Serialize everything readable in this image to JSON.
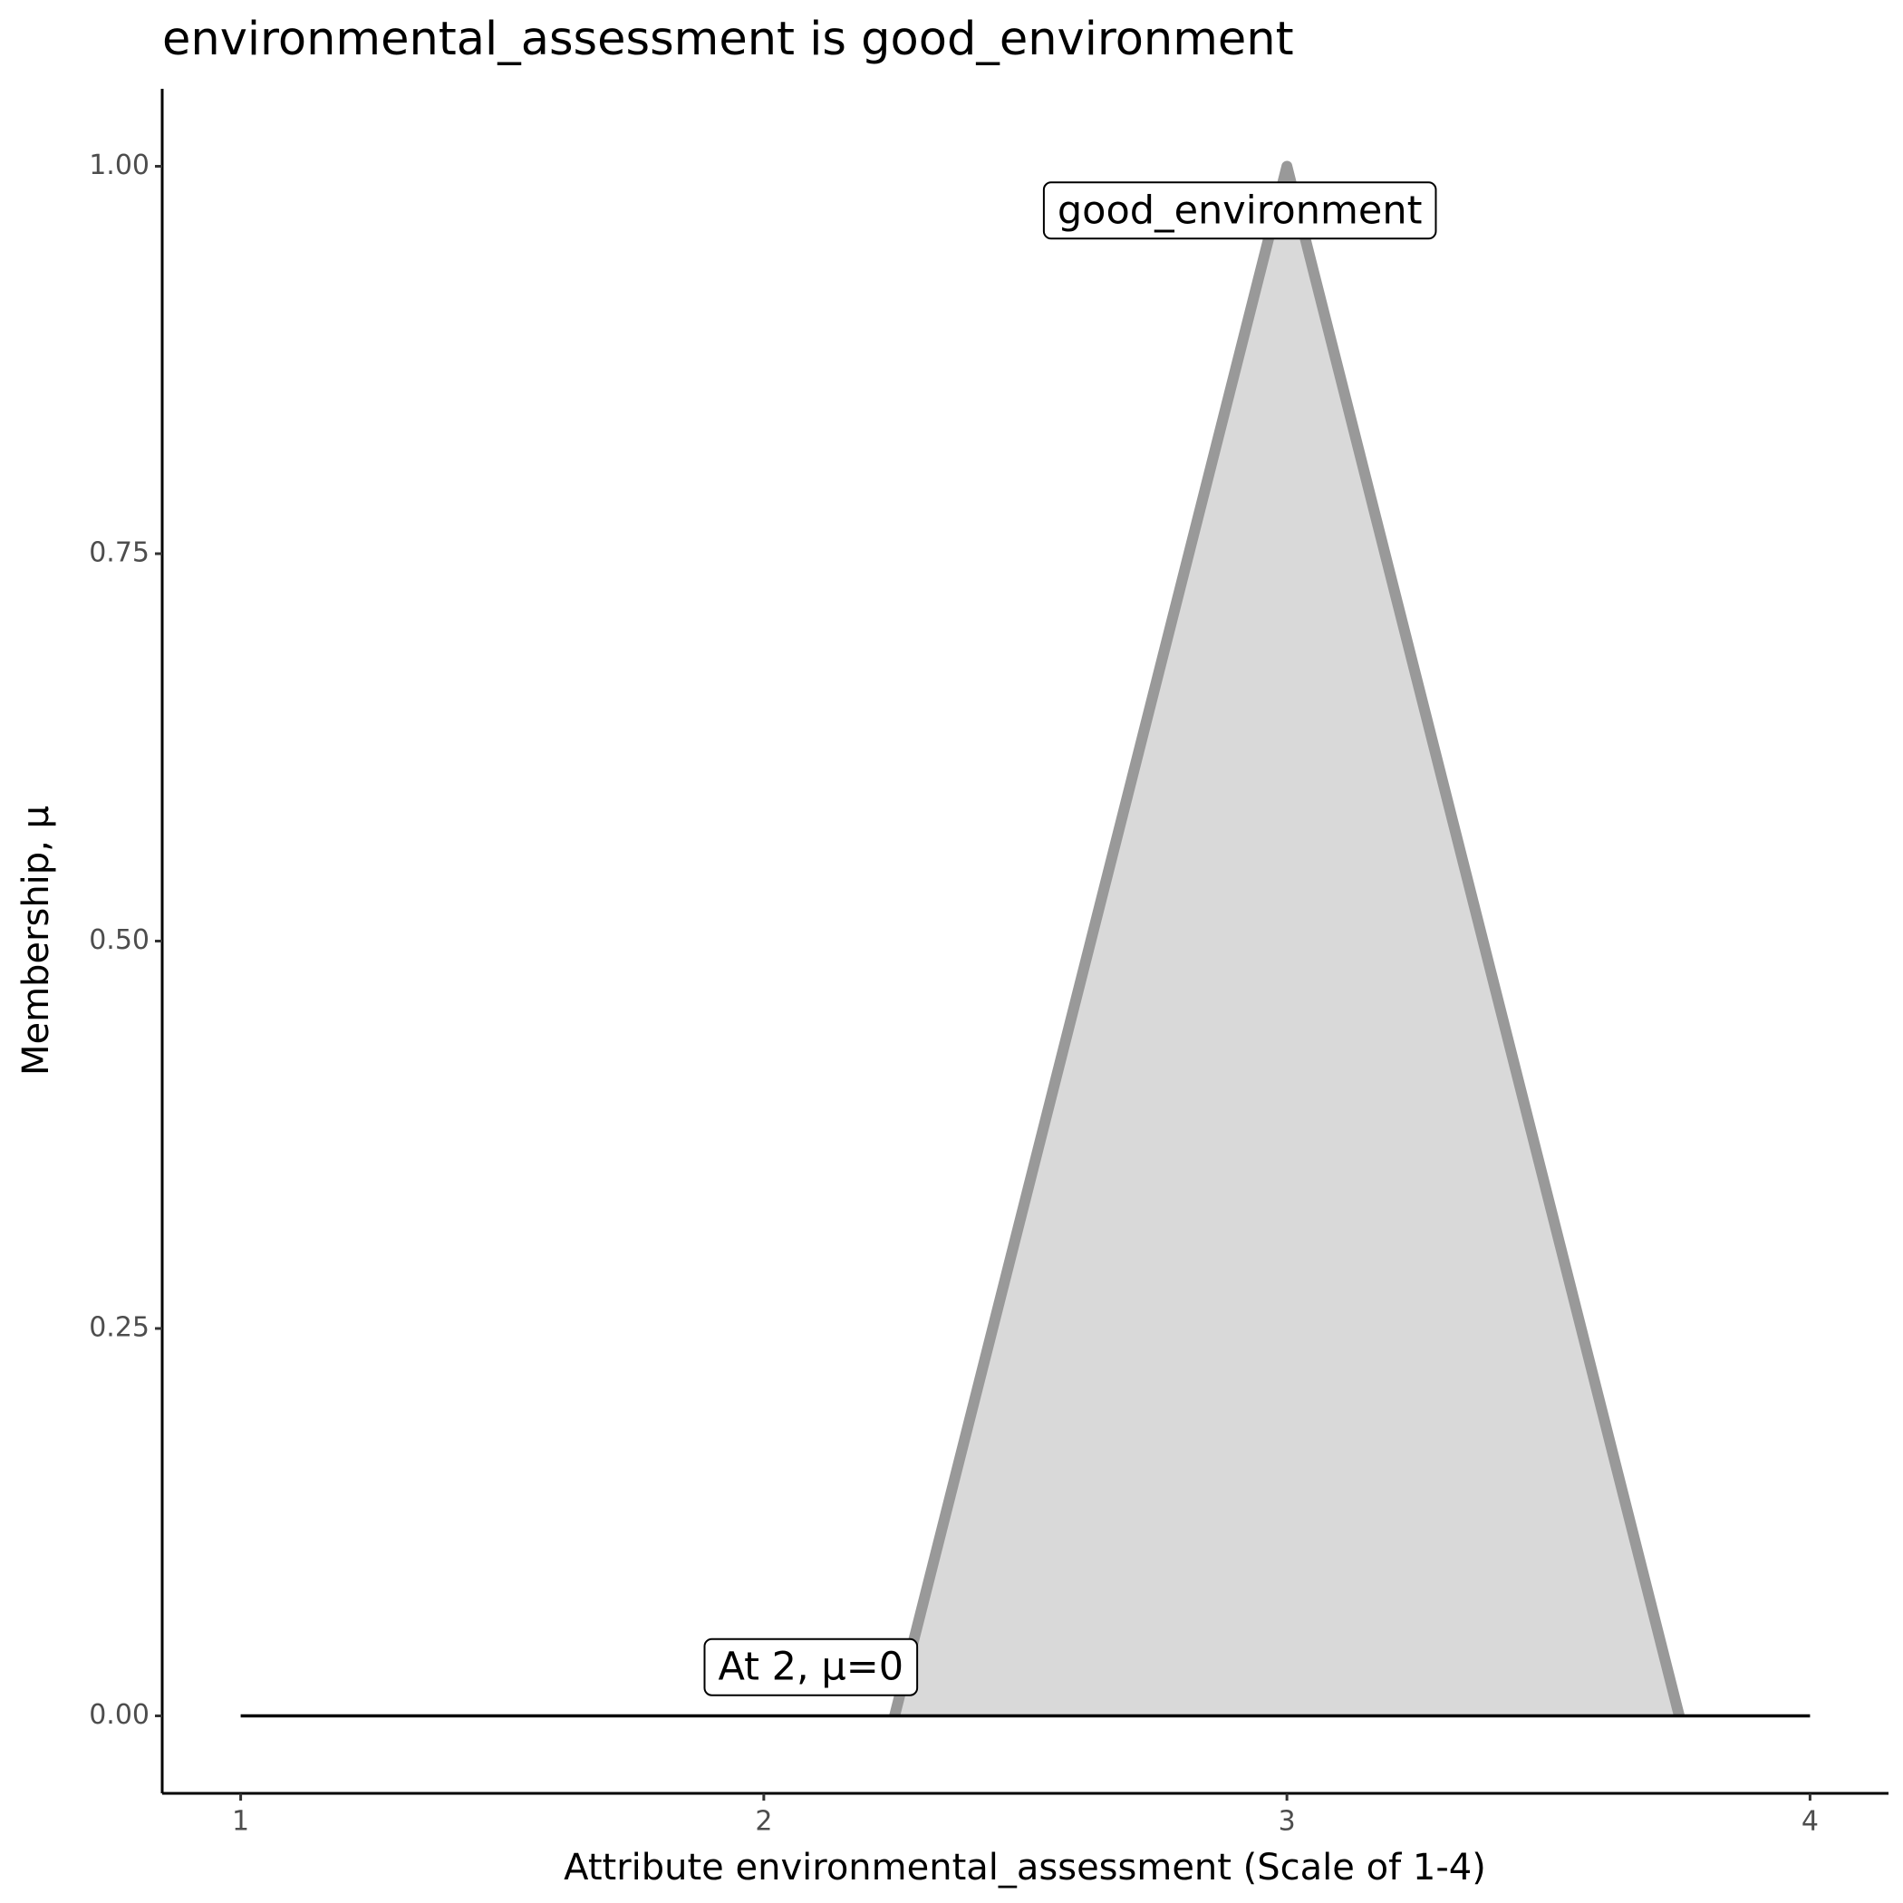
{
  "chart_data": {
    "type": "line",
    "title": "environmental_assessment is good_environment",
    "x_label": "Attribute environmental_assessment (Scale of 1-4)",
    "y_label": "Membership, μ",
    "series": [
      {
        "x": [
          2.25,
          3,
          3.75
        ],
        "values": [
          0,
          1,
          0
        ],
        "color": "#999999",
        "fill": "#d9d9d9"
      },
      {
        "x": [
          1,
          4
        ],
        "values": [
          0,
          0
        ],
        "color": "#000000"
      }
    ],
    "annotations": [
      {
        "text": "good_environment",
        "x": 2.91,
        "y": 0.97
      },
      {
        "text": "At 2, μ=0",
        "x": 2.09,
        "y": 0.03
      }
    ],
    "xlim": [
      0.85,
      4.15
    ],
    "ylim": [
      -0.05,
      1.05
    ],
    "xticks": [
      1,
      2,
      3,
      4
    ],
    "yticks": [
      {
        "value": 0,
        "label": "0.00"
      },
      {
        "value": 0.25,
        "label": "0.25"
      },
      {
        "value": 0.5,
        "label": "0.50"
      },
      {
        "value": 0.75,
        "label": "0.75"
      },
      {
        "value": 1,
        "label": "1.00"
      }
    ],
    "grid": false
  }
}
